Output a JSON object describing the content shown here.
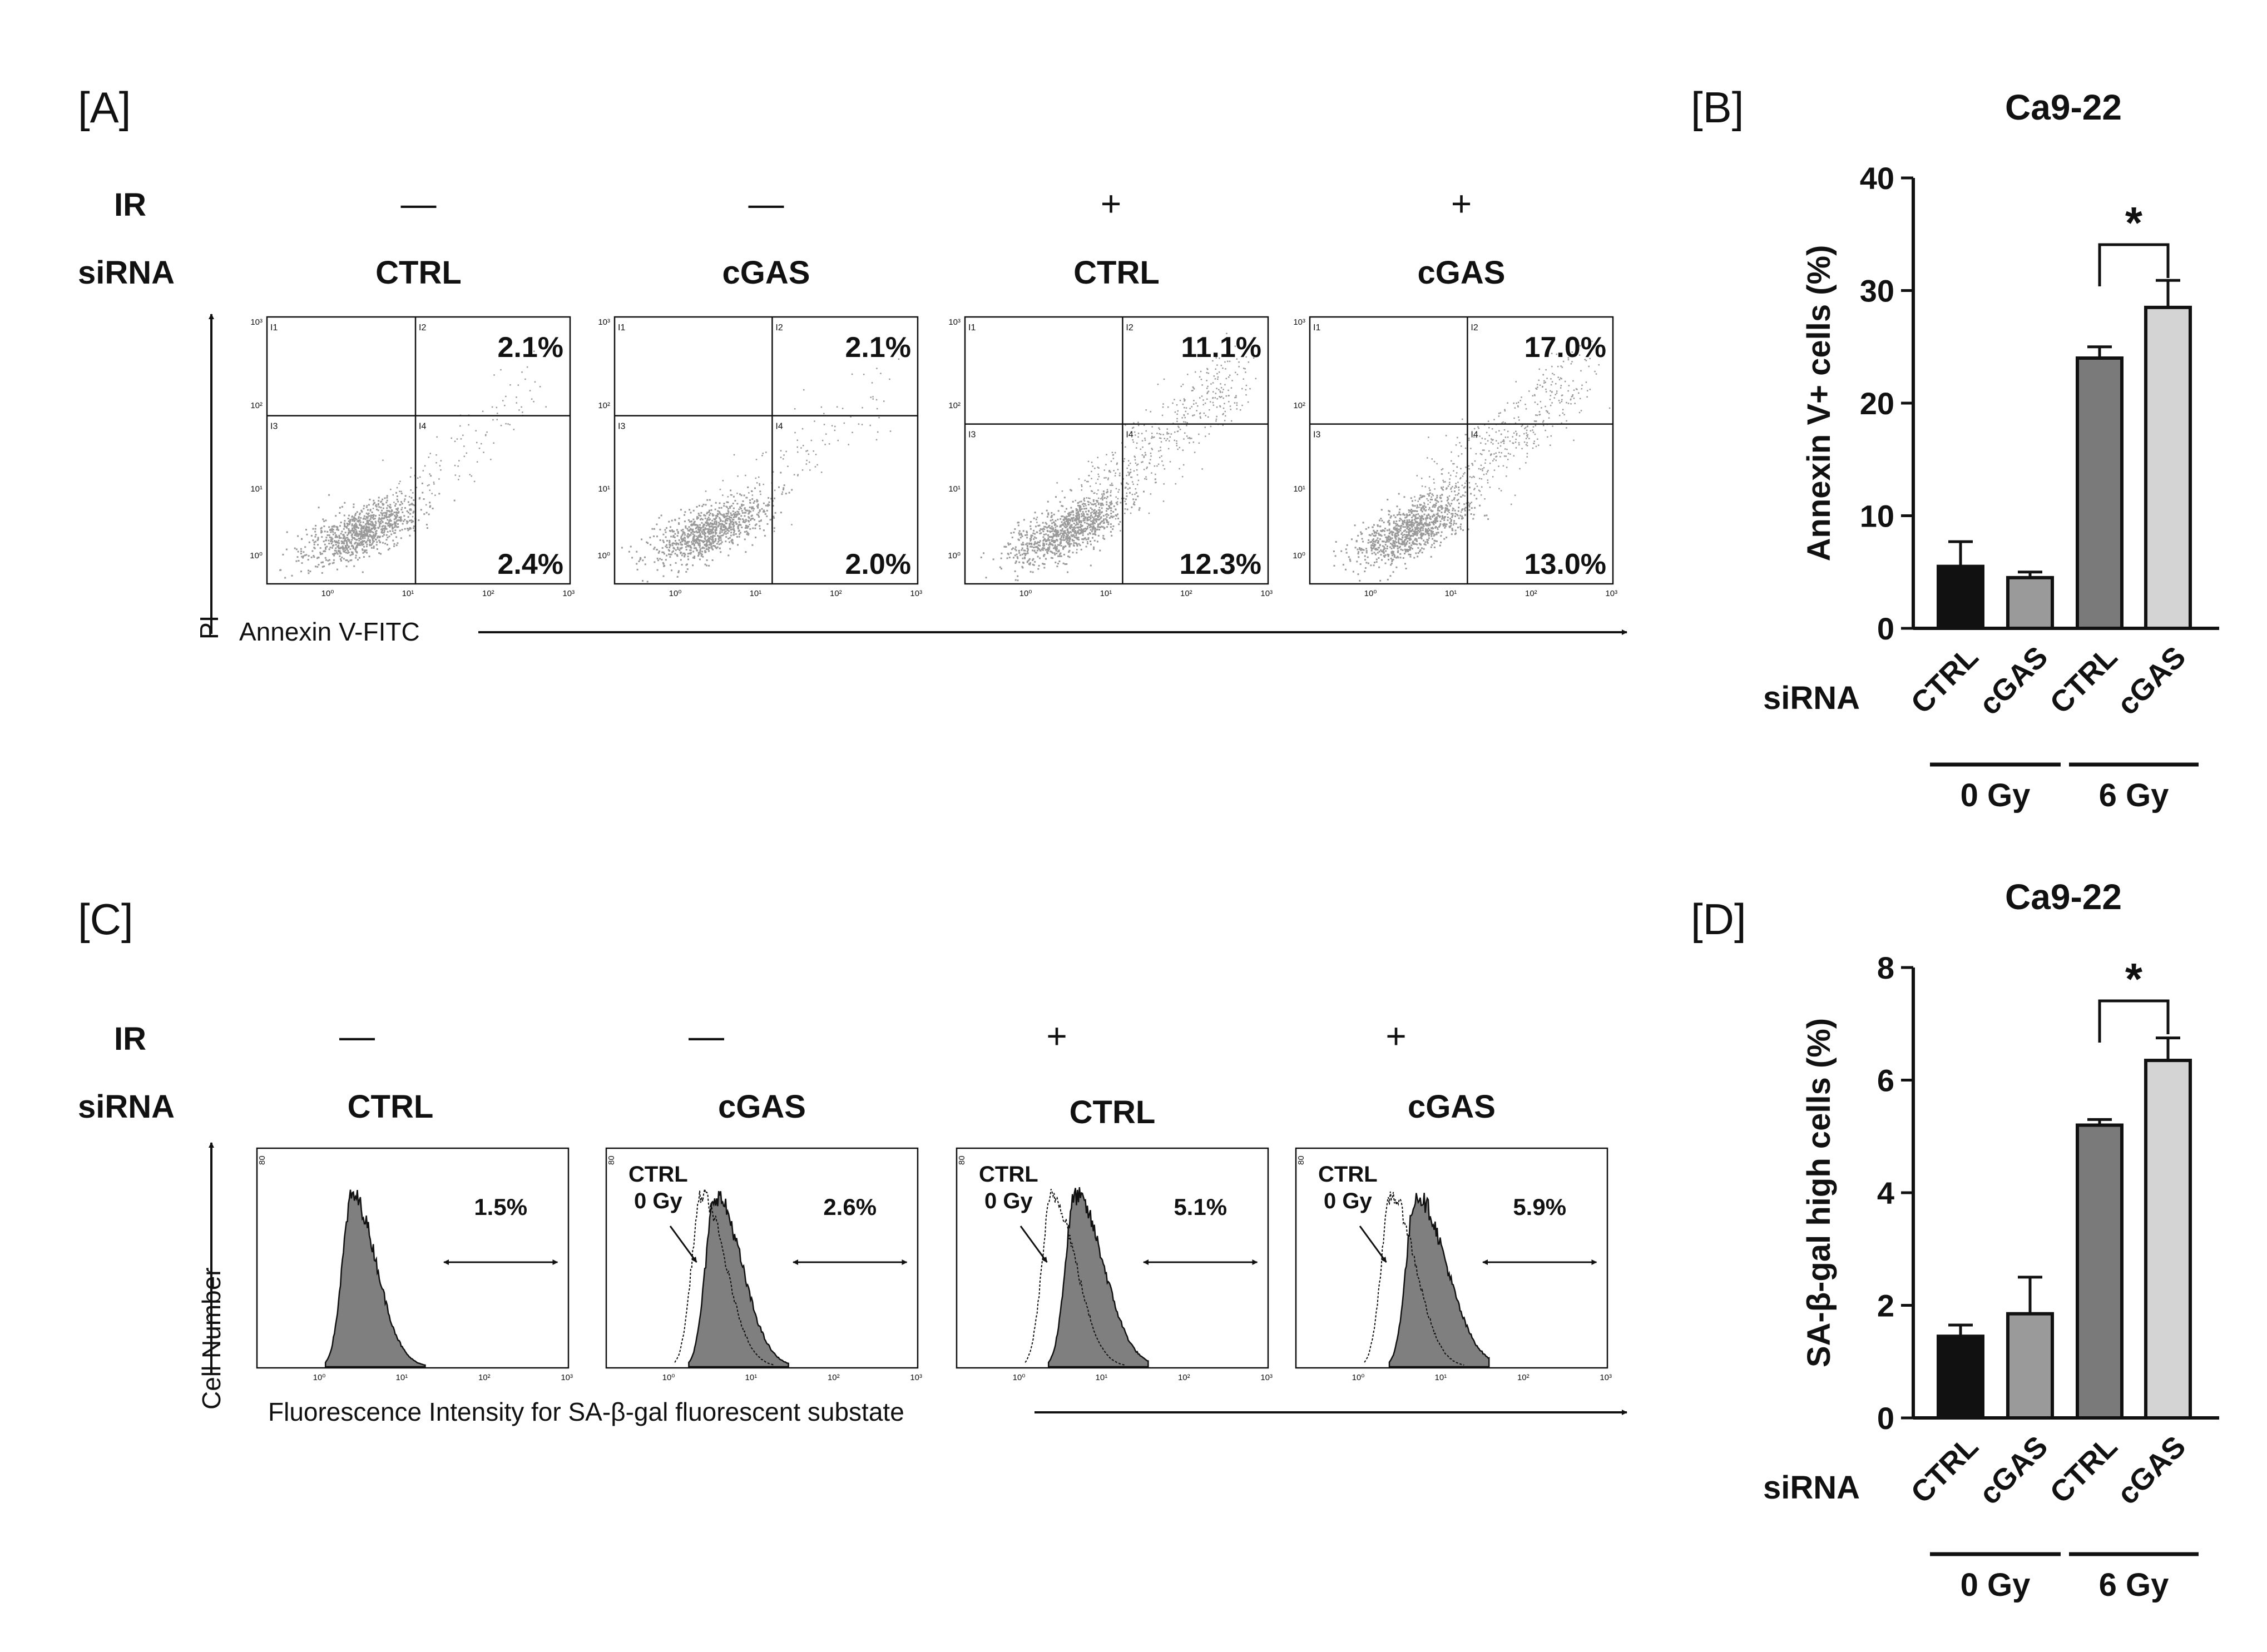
{
  "colors": {
    "ink": "#111111",
    "dots": "#9a9a9a",
    "hist_fill": "#7f7f7f",
    "bar_ctrl_0gy": "#111111",
    "bar_cgas_0gy": "#9a9a9a",
    "bar_ctrl_6gy": "#7a7a7a",
    "bar_cgas_6gy": "#d4d4d4"
  },
  "panel_a": {
    "label": "[A]",
    "ir_label": "IR",
    "sirna_label": "siRNA",
    "y_axis_label": "PI",
    "x_axis_label": "Annexin V-FITC",
    "quadrant_codes": [
      "I1",
      "I2",
      "I3",
      "I4"
    ],
    "y_ticks": [
      "10³",
      "10²",
      "10¹",
      "10⁰"
    ],
    "x_ticks": [
      "10⁰",
      "10¹",
      "10²",
      "10³"
    ],
    "plots": [
      {
        "ir": "—",
        "sirna": "CTRL",
        "upper_right": "2.1%",
        "lower_right": "2.4%"
      },
      {
        "ir": "—",
        "sirna": "cGAS",
        "upper_right": "2.1%",
        "lower_right": "2.0%"
      },
      {
        "ir": "+",
        "sirna": "CTRL",
        "upper_right": "11.1%",
        "lower_right": "12.3%"
      },
      {
        "ir": "+",
        "sirna": "cGAS",
        "upper_right": "17.0%",
        "lower_right": "13.0%"
      }
    ]
  },
  "panel_c": {
    "label": "[C]",
    "ir_label": "IR",
    "sirna_label": "siRNA",
    "y_axis_label": "Cell Number",
    "x_axis_label": "Fluorescence Intensity for SA-β-gal fluorescent substate",
    "y_top_tick": "80",
    "x_ticks": [
      "10⁰",
      "10¹",
      "10²",
      "10³"
    ],
    "overlay_label": [
      "CTRL",
      "0 Gy"
    ],
    "plots": [
      {
        "ir": "—",
        "sirna": "CTRL",
        "gate_percent": "1.5%",
        "overlay": false
      },
      {
        "ir": "—",
        "sirna": "cGAS",
        "gate_percent": "2.6%",
        "overlay": true
      },
      {
        "ir": "+",
        "sirna": "CTRL",
        "gate_percent": "5.1%",
        "overlay": true
      },
      {
        "ir": "+",
        "sirna": "cGAS",
        "gate_percent": "5.9%",
        "overlay": true
      }
    ]
  },
  "chart_data": [
    {
      "panel": "[B]",
      "type": "bar",
      "title": "Ca9-22",
      "ylabel": "Annexin V+ cells (%)",
      "ylim": [
        0,
        40
      ],
      "yticks": [
        0,
        10,
        20,
        30,
        40
      ],
      "categories": [
        "CTRL",
        "cGAS",
        "CTRL",
        "cGAS"
      ],
      "values": [
        5.5,
        4.5,
        24.0,
        28.5
      ],
      "errors": [
        2.2,
        0.5,
        1.0,
        2.4
      ],
      "groups": [
        {
          "label": "0 Gy",
          "members": [
            0,
            1
          ]
        },
        {
          "label": "6 Gy",
          "members": [
            2,
            3
          ]
        }
      ],
      "factor_label": "siRNA",
      "significance": {
        "between": [
          2,
          3
        ],
        "label": "*"
      }
    },
    {
      "panel": "[D]",
      "type": "bar",
      "title": "Ca9-22",
      "ylabel": "SA-β-gal high cells (%)",
      "ylim": [
        0,
        8
      ],
      "yticks": [
        0,
        2,
        4,
        6,
        8
      ],
      "categories": [
        "CTRL",
        "cGAS",
        "CTRL",
        "cGAS"
      ],
      "values": [
        1.45,
        1.85,
        5.2,
        6.35
      ],
      "errors": [
        0.2,
        0.65,
        0.1,
        0.4
      ],
      "groups": [
        {
          "label": "0 Gy",
          "members": [
            0,
            1
          ]
        },
        {
          "label": "6 Gy",
          "members": [
            2,
            3
          ]
        }
      ],
      "factor_label": "siRNA",
      "significance": {
        "between": [
          2,
          3
        ],
        "label": "*"
      }
    }
  ]
}
